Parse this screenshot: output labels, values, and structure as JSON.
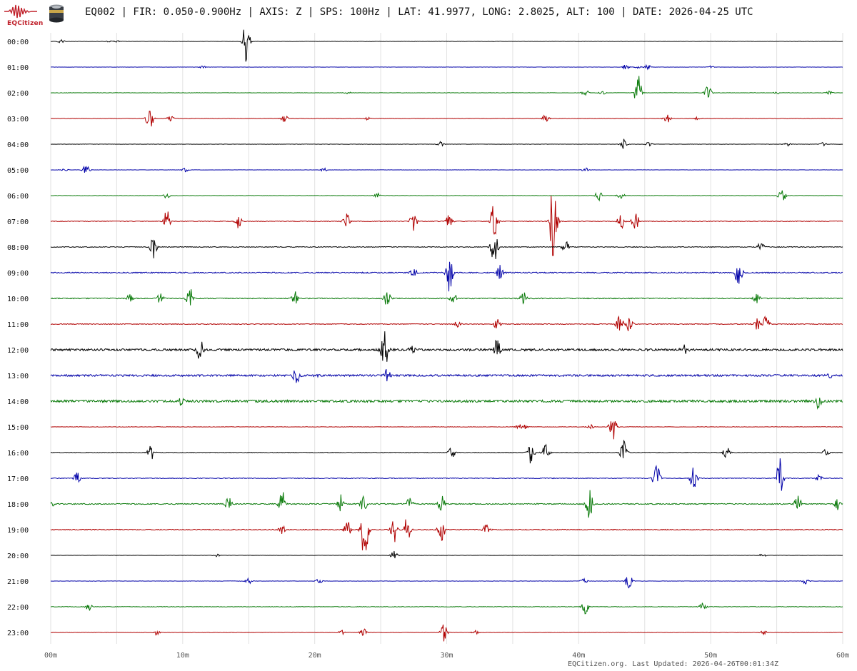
{
  "header": {
    "logo_text": "EQCitizen",
    "logo_icon": "seismogram-wave-logo",
    "sensor_icon": "seismometer-sensor-icon",
    "title": "EQ002 | FIR: 0.050-0.900Hz | AXIS: Z | SPS: 100Hz | LAT: 41.9977, LONG: 2.8025, ALT: 100 | DATE: 2026-04-25 UTC"
  },
  "footer": {
    "text": "EQCitizen.org. Last Updated: 2026-04-26T00:01:34Z"
  },
  "colors": {
    "trace_cycle": [
      "#000000",
      "#0000a8",
      "#0a7a0a",
      "#b00000"
    ],
    "grid": "#e2e2e2",
    "logo": "#c0202a"
  },
  "chart_data": {
    "type": "line",
    "title": "EQ002 | FIR: 0.050-0.900Hz | AXIS: Z | SPS: 100Hz | LAT: 41.9977, LONG: 2.8025, ALT: 100 | DATE: 2026-04-25 UTC",
    "xlabel": "",
    "ylabel": "",
    "xlim": [
      0,
      60
    ],
    "x_ticks": [
      0,
      10,
      20,
      30,
      40,
      50,
      60
    ],
    "x_tick_labels": [
      "00m",
      "10m",
      "20m",
      "30m",
      "40m",
      "50m",
      "60m"
    ],
    "x_minor_grid_step": 5,
    "grid": true,
    "legend": "none",
    "rows": [
      {
        "label": "00:00",
        "noise": 0.12,
        "events": [
          [
            0.8,
            3
          ],
          [
            5,
            1.5
          ],
          [
            14.8,
            30
          ],
          [
            4.5,
            1.5
          ]
        ]
      },
      {
        "label": "01:00",
        "noise": 0.1,
        "events": [
          [
            11.5,
            2
          ],
          [
            43.6,
            4
          ],
          [
            44.5,
            3
          ],
          [
            45.2,
            4
          ],
          [
            50,
            2
          ]
        ]
      },
      {
        "label": "02:00",
        "noise": 0.12,
        "events": [
          [
            22.5,
            2
          ],
          [
            40.5,
            5
          ],
          [
            41.8,
            3
          ],
          [
            44.5,
            28
          ],
          [
            49.8,
            10
          ],
          [
            55,
            2
          ],
          [
            59,
            3
          ]
        ]
      },
      {
        "label": "03:00",
        "noise": 0.15,
        "events": [
          [
            7.5,
            18
          ],
          [
            9.1,
            5
          ],
          [
            17.7,
            6
          ],
          [
            24,
            2
          ],
          [
            37.5,
            6
          ],
          [
            46.7,
            7
          ],
          [
            49,
            2
          ]
        ]
      },
      {
        "label": "04:00",
        "noise": 0.12,
        "events": [
          [
            29.5,
            4
          ],
          [
            43.4,
            8
          ],
          [
            45.3,
            3
          ],
          [
            55.8,
            3
          ],
          [
            58.5,
            3
          ]
        ]
      },
      {
        "label": "05:00",
        "noise": 0.1,
        "events": [
          [
            1,
            3
          ],
          [
            2.7,
            8
          ],
          [
            10.2,
            3
          ],
          [
            20.7,
            3
          ],
          [
            40.5,
            3
          ]
        ]
      },
      {
        "label": "06:00",
        "noise": 0.15,
        "events": [
          [
            8.8,
            4
          ],
          [
            24.7,
            4
          ],
          [
            41.5,
            8
          ],
          [
            43.2,
            6
          ],
          [
            55.4,
            12
          ]
        ]
      },
      {
        "label": "07:00",
        "noise": 0.3,
        "events": [
          [
            8.8,
            16
          ],
          [
            14.2,
            10
          ],
          [
            22.4,
            12
          ],
          [
            27.5,
            14
          ],
          [
            30.2,
            10
          ],
          [
            33.6,
            30
          ],
          [
            38.1,
            80
          ],
          [
            43.2,
            12
          ],
          [
            44.3,
            14
          ]
        ]
      },
      {
        "label": "08:00",
        "noise": 0.35,
        "events": [
          [
            7.8,
            16
          ],
          [
            33.6,
            26
          ],
          [
            39,
            10
          ],
          [
            53.8,
            8
          ]
        ]
      },
      {
        "label": "09:00",
        "noise": 0.55,
        "events": [
          [
            27.5,
            8
          ],
          [
            30.2,
            28
          ],
          [
            34,
            12
          ],
          [
            52.1,
            22
          ]
        ]
      },
      {
        "label": "10:00",
        "noise": 0.45,
        "events": [
          [
            6,
            6
          ],
          [
            8.3,
            8
          ],
          [
            10.5,
            18
          ],
          [
            18.5,
            10
          ],
          [
            25.5,
            12
          ],
          [
            30.5,
            8
          ],
          [
            35.8,
            10
          ],
          [
            53.5,
            8
          ]
        ]
      },
      {
        "label": "11:00",
        "noise": 0.35,
        "events": [
          [
            30.8,
            6
          ],
          [
            33.8,
            8
          ],
          [
            43.1,
            16
          ],
          [
            43.8,
            12
          ],
          [
            53.5,
            10
          ],
          [
            54.2,
            14
          ]
        ]
      },
      {
        "label": "12:00",
        "noise": 1.0,
        "events": [
          [
            11.3,
            16
          ],
          [
            25.3,
            28
          ],
          [
            27.4,
            8
          ],
          [
            33.8,
            14
          ],
          [
            48,
            8
          ]
        ]
      },
      {
        "label": "13:00",
        "noise": 0.9,
        "events": [
          [
            18.6,
            14
          ],
          [
            20.2,
            6
          ],
          [
            25.5,
            10
          ],
          [
            59,
            4
          ]
        ]
      },
      {
        "label": "14:00",
        "noise": 1.1,
        "events": [
          [
            9.9,
            10
          ],
          [
            58.2,
            12
          ]
        ]
      },
      {
        "label": "15:00",
        "noise": 0.15,
        "events": [
          [
            35.5,
            4
          ],
          [
            40.9,
            4
          ],
          [
            42.6,
            20
          ],
          [
            35.9,
            3
          ]
        ]
      },
      {
        "label": "16:00",
        "noise": 0.3,
        "events": [
          [
            7.6,
            10
          ],
          [
            30.4,
            8
          ],
          [
            36.4,
            18
          ],
          [
            37.5,
            14
          ],
          [
            43.4,
            20
          ],
          [
            51.2,
            8
          ],
          [
            58.7,
            6
          ]
        ]
      },
      {
        "label": "17:00",
        "noise": 0.35,
        "events": [
          [
            2,
            8
          ],
          [
            45.9,
            22
          ],
          [
            48.7,
            18
          ],
          [
            55.2,
            30
          ],
          [
            58.2,
            6
          ]
        ]
      },
      {
        "label": "18:00",
        "noise": 0.5,
        "events": [
          [
            0,
            6
          ],
          [
            13.5,
            12
          ],
          [
            17.5,
            20
          ],
          [
            21.9,
            16
          ],
          [
            23.7,
            12
          ],
          [
            27.2,
            10
          ],
          [
            29.6,
            16
          ],
          [
            40.8,
            22
          ],
          [
            56.6,
            16
          ],
          [
            59.6,
            8
          ]
        ]
      },
      {
        "label": "19:00",
        "noise": 0.4,
        "events": [
          [
            17.5,
            8
          ],
          [
            22.5,
            12
          ],
          [
            23.8,
            52
          ],
          [
            26,
            22
          ],
          [
            27,
            18
          ],
          [
            29.6,
            16
          ],
          [
            33,
            8
          ]
        ]
      },
      {
        "label": "20:00",
        "noise": 0.1,
        "events": [
          [
            12.6,
            3
          ],
          [
            26,
            6
          ],
          [
            53.9,
            4
          ]
        ]
      },
      {
        "label": "21:00",
        "noise": 0.12,
        "events": [
          [
            15,
            4
          ],
          [
            20.3,
            4
          ],
          [
            40.4,
            4
          ],
          [
            43.8,
            14
          ],
          [
            57.2,
            4
          ]
        ]
      },
      {
        "label": "22:00",
        "noise": 0.22,
        "events": [
          [
            2.9,
            6
          ],
          [
            40.5,
            12
          ],
          [
            49.4,
            6
          ]
        ]
      },
      {
        "label": "23:00",
        "noise": 0.15,
        "events": [
          [
            8,
            4
          ],
          [
            22,
            4
          ],
          [
            23.7,
            6
          ],
          [
            29.8,
            14
          ],
          [
            32.2,
            4
          ],
          [
            54,
            3
          ]
        ]
      }
    ]
  }
}
